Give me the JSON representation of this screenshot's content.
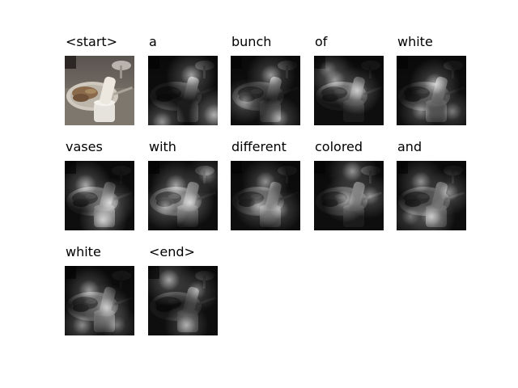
{
  "figure": {
    "panels": [
      {
        "word": "<start>",
        "attention": [],
        "original": true
      },
      {
        "word": "a",
        "attention": [
          [
            0.62,
            0.28,
            0.85
          ],
          [
            0.95,
            0.85,
            0.9
          ],
          [
            0.2,
            0.95,
            0.7
          ]
        ]
      },
      {
        "word": "bunch",
        "attention": [
          [
            0.58,
            0.28,
            0.8
          ],
          [
            0.2,
            0.65,
            0.65
          ],
          [
            0.7,
            0.9,
            0.6
          ]
        ]
      },
      {
        "word": "of",
        "attention": [
          [
            0.3,
            0.35,
            0.8
          ],
          [
            0.62,
            0.5,
            0.75
          ],
          [
            0.2,
            0.2,
            0.55
          ]
        ]
      },
      {
        "word": "white",
        "attention": [
          [
            0.55,
            0.4,
            0.85
          ],
          [
            0.35,
            0.8,
            0.6
          ],
          [
            0.8,
            0.8,
            0.55
          ]
        ]
      },
      {
        "word": "vases",
        "attention": [
          [
            0.3,
            0.35,
            0.9
          ],
          [
            0.65,
            0.6,
            0.8
          ],
          [
            0.55,
            0.85,
            0.75
          ]
        ]
      },
      {
        "word": "with",
        "attention": [
          [
            0.4,
            0.35,
            0.85
          ],
          [
            0.25,
            0.65,
            0.75
          ],
          [
            0.6,
            0.6,
            0.8
          ],
          [
            0.85,
            0.2,
            0.6
          ]
        ]
      },
      {
        "word": "different",
        "attention": [
          [
            0.5,
            0.3,
            0.75
          ],
          [
            0.4,
            0.65,
            0.7
          ],
          [
            0.7,
            0.7,
            0.6
          ]
        ]
      },
      {
        "word": "colored",
        "attention": [
          [
            0.55,
            0.15,
            0.8
          ],
          [
            0.45,
            0.55,
            0.7
          ],
          [
            0.8,
            0.5,
            0.65
          ]
        ]
      },
      {
        "word": "and",
        "attention": [
          [
            0.35,
            0.3,
            0.75
          ],
          [
            0.75,
            0.45,
            0.7
          ],
          [
            0.5,
            0.8,
            0.75
          ],
          [
            0.2,
            0.8,
            0.5
          ]
        ]
      },
      {
        "word": "white",
        "attention": [
          [
            0.35,
            0.35,
            0.8
          ],
          [
            0.6,
            0.6,
            0.75
          ],
          [
            0.25,
            0.85,
            0.65
          ],
          [
            0.75,
            0.85,
            0.5
          ]
        ]
      },
      {
        "word": "<end>",
        "attention": [
          [
            0.3,
            0.2,
            0.9
          ],
          [
            0.7,
            0.35,
            0.6
          ],
          [
            0.55,
            0.85,
            0.6
          ]
        ]
      }
    ]
  }
}
